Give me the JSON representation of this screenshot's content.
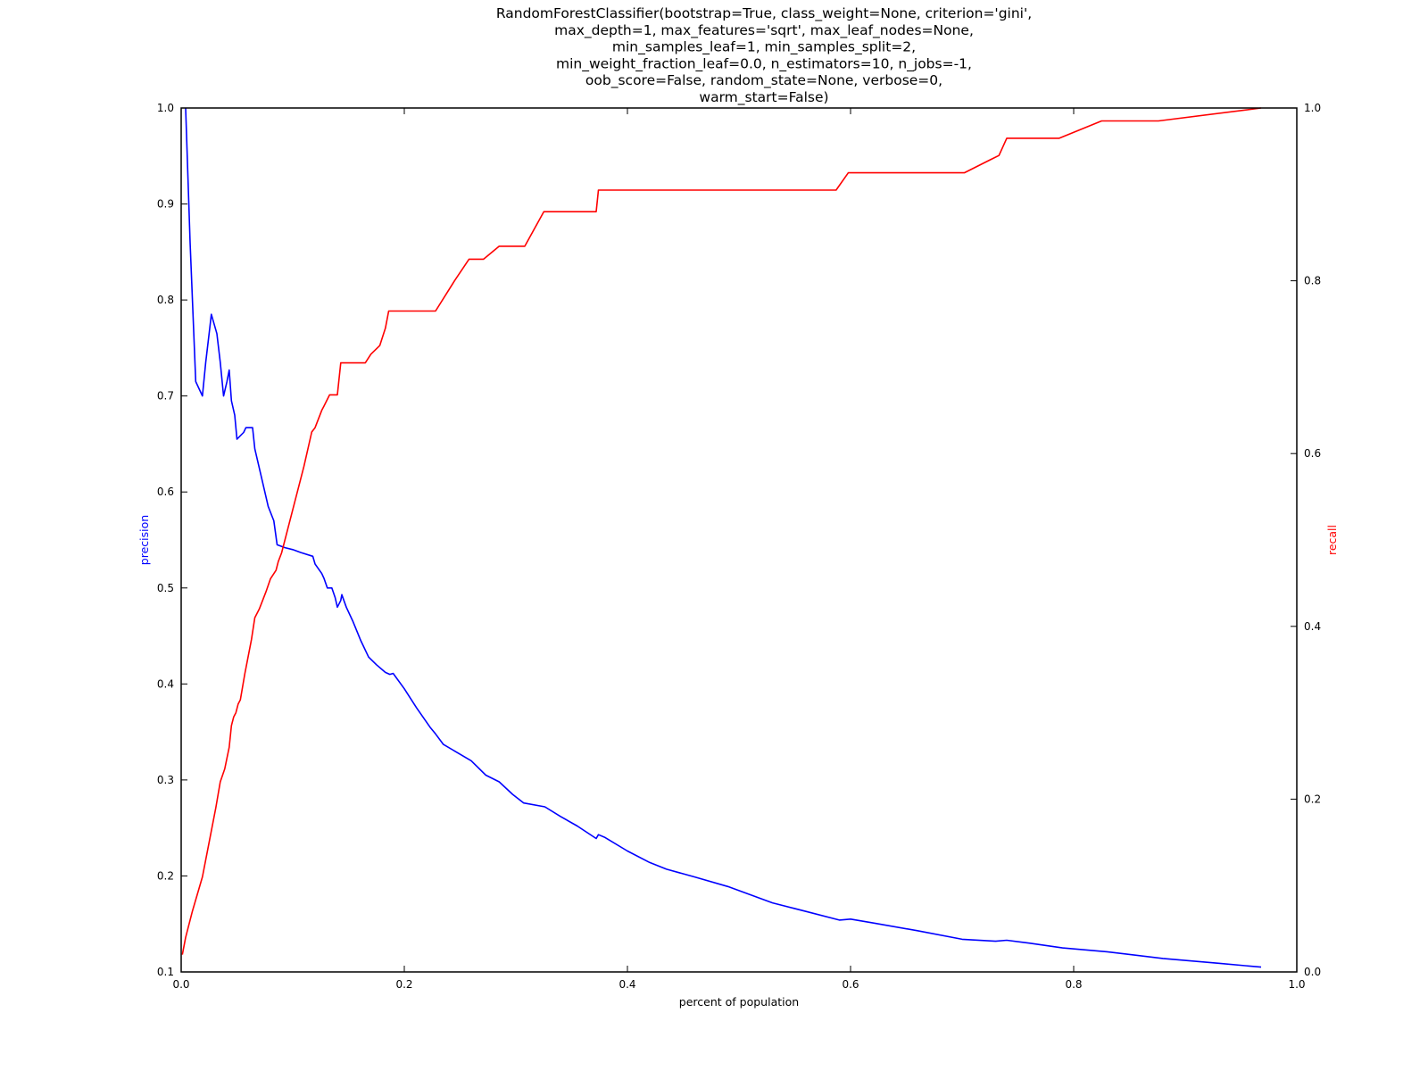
{
  "chart_data": {
    "type": "line",
    "title_lines": [
      "RandomForestClassifier(bootstrap=True, class_weight=None, criterion='gini',",
      "max_depth=1, max_features='sqrt', max_leaf_nodes=None,",
      "min_samples_leaf=1, min_samples_split=2,",
      "min_weight_fraction_leaf=0.0, n_estimators=10, n_jobs=-1,",
      "oob_score=False, random_state=None, verbose=0,",
      "warm_start=False)"
    ],
    "xlabel": "percent of population",
    "ylabel_left": "precision",
    "ylabel_right": "recall",
    "xlim": [
      0.0,
      1.0
    ],
    "ylim_left": [
      0.1,
      1.0
    ],
    "ylim_right": [
      0.0,
      1.0
    ],
    "x_ticks": [
      "0.0",
      "0.2",
      "0.4",
      "0.6",
      "0.8",
      "1.0"
    ],
    "y_left_ticks": [
      "0.1",
      "0.2",
      "0.3",
      "0.4",
      "0.5",
      "0.6",
      "0.7",
      "0.8",
      "0.9",
      "1.0"
    ],
    "y_right_ticks": [
      "0.0",
      "0.2",
      "0.4",
      "0.6",
      "0.8",
      "1.0"
    ],
    "grid": false,
    "series": [
      {
        "name": "precision",
        "axis": "left",
        "color": "#0000ff",
        "points": [
          [
            0.004,
            1.0
          ],
          [
            0.008,
            0.86
          ],
          [
            0.013,
            0.715
          ],
          [
            0.019,
            0.7
          ],
          [
            0.022,
            0.735
          ],
          [
            0.025,
            0.765
          ],
          [
            0.027,
            0.785
          ],
          [
            0.032,
            0.765
          ],
          [
            0.035,
            0.735
          ],
          [
            0.038,
            0.7
          ],
          [
            0.041,
            0.715
          ],
          [
            0.043,
            0.727
          ],
          [
            0.045,
            0.695
          ],
          [
            0.048,
            0.68
          ],
          [
            0.05,
            0.655
          ],
          [
            0.056,
            0.662
          ],
          [
            0.058,
            0.667
          ],
          [
            0.064,
            0.667
          ],
          [
            0.066,
            0.645
          ],
          [
            0.072,
            0.615
          ],
          [
            0.078,
            0.585
          ],
          [
            0.083,
            0.57
          ],
          [
            0.086,
            0.545
          ],
          [
            0.093,
            0.542
          ],
          [
            0.1,
            0.54
          ],
          [
            0.107,
            0.537
          ],
          [
            0.118,
            0.533
          ],
          [
            0.12,
            0.525
          ],
          [
            0.126,
            0.515
          ],
          [
            0.128,
            0.51
          ],
          [
            0.131,
            0.5
          ],
          [
            0.135,
            0.5
          ],
          [
            0.138,
            0.49
          ],
          [
            0.14,
            0.48
          ],
          [
            0.143,
            0.487
          ],
          [
            0.144,
            0.493
          ],
          [
            0.148,
            0.48
          ],
          [
            0.154,
            0.465
          ],
          [
            0.161,
            0.445
          ],
          [
            0.168,
            0.428
          ],
          [
            0.175,
            0.42
          ],
          [
            0.183,
            0.412
          ],
          [
            0.187,
            0.41
          ],
          [
            0.19,
            0.411
          ],
          [
            0.2,
            0.395
          ],
          [
            0.211,
            0.375
          ],
          [
            0.223,
            0.355
          ],
          [
            0.228,
            0.348
          ],
          [
            0.235,
            0.337
          ],
          [
            0.26,
            0.32
          ],
          [
            0.273,
            0.305
          ],
          [
            0.285,
            0.298
          ],
          [
            0.297,
            0.285
          ],
          [
            0.307,
            0.276
          ],
          [
            0.326,
            0.272
          ],
          [
            0.34,
            0.262
          ],
          [
            0.355,
            0.252
          ],
          [
            0.372,
            0.239
          ],
          [
            0.374,
            0.243
          ],
          [
            0.38,
            0.24
          ],
          [
            0.4,
            0.226
          ],
          [
            0.42,
            0.214
          ],
          [
            0.435,
            0.207
          ],
          [
            0.46,
            0.199
          ],
          [
            0.49,
            0.189
          ],
          [
            0.53,
            0.172
          ],
          [
            0.56,
            0.163
          ],
          [
            0.59,
            0.154
          ],
          [
            0.6,
            0.155
          ],
          [
            0.62,
            0.151
          ],
          [
            0.66,
            0.143
          ],
          [
            0.7,
            0.134
          ],
          [
            0.73,
            0.132
          ],
          [
            0.74,
            0.133
          ],
          [
            0.76,
            0.13
          ],
          [
            0.79,
            0.125
          ],
          [
            0.83,
            0.121
          ],
          [
            0.88,
            0.114
          ],
          [
            0.93,
            0.109
          ],
          [
            0.968,
            0.105
          ]
        ]
      },
      {
        "name": "recall",
        "axis": "right",
        "color": "#ff0000",
        "points": [
          [
            0.001,
            0.02
          ],
          [
            0.004,
            0.04
          ],
          [
            0.01,
            0.07
          ],
          [
            0.019,
            0.11
          ],
          [
            0.025,
            0.15
          ],
          [
            0.031,
            0.19
          ],
          [
            0.035,
            0.22
          ],
          [
            0.039,
            0.235
          ],
          [
            0.043,
            0.26
          ],
          [
            0.045,
            0.285
          ],
          [
            0.047,
            0.295
          ],
          [
            0.049,
            0.3
          ],
          [
            0.051,
            0.31
          ],
          [
            0.053,
            0.315
          ],
          [
            0.057,
            0.345
          ],
          [
            0.063,
            0.385
          ],
          [
            0.066,
            0.41
          ],
          [
            0.07,
            0.42
          ],
          [
            0.076,
            0.44
          ],
          [
            0.08,
            0.455
          ],
          [
            0.085,
            0.465
          ],
          [
            0.087,
            0.475
          ],
          [
            0.09,
            0.485
          ],
          [
            0.098,
            0.525
          ],
          [
            0.11,
            0.585
          ],
          [
            0.117,
            0.625
          ],
          [
            0.12,
            0.63
          ],
          [
            0.126,
            0.65
          ],
          [
            0.128,
            0.655
          ],
          [
            0.133,
            0.668
          ],
          [
            0.14,
            0.668
          ],
          [
            0.143,
            0.705
          ],
          [
            0.165,
            0.705
          ],
          [
            0.17,
            0.715
          ],
          [
            0.178,
            0.725
          ],
          [
            0.183,
            0.745
          ],
          [
            0.186,
            0.765
          ],
          [
            0.228,
            0.765
          ],
          [
            0.245,
            0.8
          ],
          [
            0.258,
            0.825
          ],
          [
            0.271,
            0.825
          ],
          [
            0.285,
            0.84
          ],
          [
            0.308,
            0.84
          ],
          [
            0.325,
            0.88
          ],
          [
            0.372,
            0.88
          ],
          [
            0.374,
            0.905
          ],
          [
            0.587,
            0.905
          ],
          [
            0.598,
            0.925
          ],
          [
            0.702,
            0.925
          ],
          [
            0.725,
            0.94
          ],
          [
            0.733,
            0.945
          ],
          [
            0.74,
            0.965
          ],
          [
            0.787,
            0.965
          ],
          [
            0.825,
            0.985
          ],
          [
            0.876,
            0.985
          ],
          [
            0.968,
            1.0
          ]
        ]
      }
    ]
  }
}
